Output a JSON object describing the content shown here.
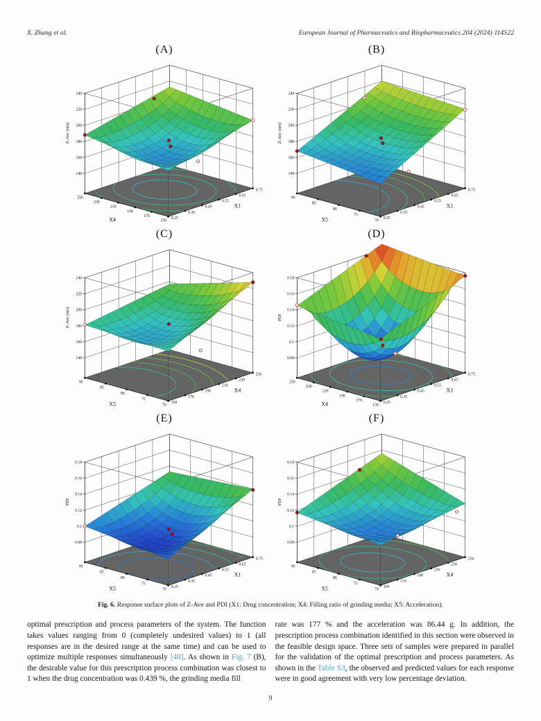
{
  "header": {
    "author": "X. Zhang et al.",
    "journal": "European Journal of Pharmaceutics and Biopharmaceutics 204 (2024) 114522"
  },
  "caption": {
    "prefix": "Fig. 6.",
    "text": " Response surface plots of Z-Ave and PDI (X1: Drug concentration; X4: Filling ratio of grinding media; X5: Acceleration)."
  },
  "body": {
    "left_col": {
      "segments": [
        {
          "text": "optimal prescription and process parameters of the system. The function takes values ranging from 0 (completely undesired values) to 1 (all responses are in the desired range at the same time) and can be used to optimize multiple responses simultaneously ",
          "link": false
        },
        {
          "text": "[48]",
          "link": true
        },
        {
          "text": ". As shown in ",
          "link": false
        },
        {
          "text": "Fig. 7",
          "link": true
        },
        {
          "text": " (B), the desirable value for this prescription process combination was closest to 1 when the drug concentration was 0.439 %, the grinding media fill",
          "link": false
        }
      ]
    },
    "right_col": {
      "segments": [
        {
          "text": "rate was 177 % and the acceleration was 86.44 g. In addition, the prescription process combination identified in this section were observed in the feasible design space. Three sets of samples were prepared in parallel for the validation of the optimal prescription and process parameters. As shown in the ",
          "link": false
        },
        {
          "text": "Table S3",
          "link": true
        },
        {
          "text": ", the observed and predicted values for each response were in good agreement with very low percentage deviation.",
          "link": false
        }
      ]
    }
  },
  "page_number": "9",
  "colors": {
    "link": "#4da3c9",
    "floor": "#646464",
    "point_filled": "#9e1518",
    "point_open": "#b05050",
    "colormap_low": "#223cc8",
    "colormap_mid": "#3ab95f",
    "colormap_high": "#dc5528"
  },
  "chart_data": [
    {
      "type": "surface3d",
      "label": "(A)",
      "zlabel": "Z-Ave (nm)",
      "z_ticks": [
        140,
        160,
        180,
        200,
        220,
        240
      ],
      "left_axis": {
        "name": "X4",
        "ticks": [
          250,
          230,
          210,
          190,
          170,
          150
        ]
      },
      "right_axis": {
        "name": "X1",
        "ticks": [
          0.25,
          0.35,
          0.45,
          0.55,
          0.65,
          0.75
        ]
      },
      "surface": {
        "corners": [
          188,
          172,
          200,
          213
        ],
        "center": 164
      },
      "contour_center": [
        0.45,
        0.5
      ],
      "contour_radii": [
        0.3,
        0.48,
        0.66,
        0.82,
        0.95
      ],
      "points": [
        {
          "u": 0,
          "v": 0,
          "z": 188,
          "open": false
        },
        {
          "u": 0.1,
          "v": 0.72,
          "z": 211,
          "open": false
        },
        {
          "u": 0.5,
          "v": 0.5,
          "z": 178,
          "open": false
        },
        {
          "u": 0.52,
          "v": 0.5,
          "z": 171,
          "open": false
        },
        {
          "u": 1,
          "v": 1,
          "z": 200,
          "open": true
        },
        {
          "u": 0.85,
          "v": 0.5,
          "z": 162,
          "open": true
        }
      ]
    },
    {
      "type": "surface3d",
      "label": "(B)",
      "zlabel": "Z-Ave (nm)",
      "z_ticks": [
        140,
        160,
        180,
        200,
        220,
        240
      ],
      "left_axis": {
        "name": "X5",
        "ticks": [
          90,
          85,
          80,
          75,
          70
        ]
      },
      "right_axis": {
        "name": "X1",
        "ticks": [
          0.25,
          0.35,
          0.45,
          0.55,
          0.65,
          0.75
        ]
      },
      "surface": {
        "corners": [
          168,
          156,
          214,
          220
        ],
        "center": 176
      },
      "contour_center": [
        0.3,
        0.1
      ],
      "contour_radii": [
        0.55,
        0.72,
        0.88,
        1.02
      ],
      "points": [
        {
          "u": 0,
          "v": 0,
          "z": 168,
          "open": false
        },
        {
          "u": 0.18,
          "v": 0.62,
          "z": 218,
          "open": true
        },
        {
          "u": 0.5,
          "v": 0.5,
          "z": 181,
          "open": false
        },
        {
          "u": 0.52,
          "v": 0.5,
          "z": 175,
          "open": false
        },
        {
          "u": 1,
          "v": 1,
          "z": 213,
          "open": true
        },
        {
          "u": 0.88,
          "v": 0.45,
          "z": 152,
          "open": true
        }
      ]
    },
    {
      "type": "surface3d",
      "label": "(C)",
      "zlabel": "Z-Ave (nm)",
      "z_ticks": [
        140,
        160,
        180,
        200,
        220,
        240
      ],
      "left_axis": {
        "name": "X5",
        "ticks": [
          90,
          85,
          80,
          75,
          70
        ]
      },
      "right_axis": {
        "name": "X4",
        "ticks": [
          150,
          170,
          190,
          210,
          230,
          250
        ]
      },
      "surface": {
        "corners": [
          181,
          177,
          228,
          197
        ],
        "center": 170
      },
      "contour_center": [
        0.35,
        0.1
      ],
      "contour_radii": [
        0.5,
        0.68,
        0.85,
        1.0
      ],
      "points": [
        {
          "u": 0,
          "v": 0,
          "z": 181,
          "open": true
        },
        {
          "u": 0.5,
          "v": 0.5,
          "z": 179,
          "open": false
        },
        {
          "u": 0.88,
          "v": 0.5,
          "z": 157,
          "open": true
        },
        {
          "u": 1,
          "v": 1,
          "z": 228,
          "open": false
        }
      ]
    },
    {
      "type": "surface3d",
      "label": "(D)",
      "zlabel": "PDI",
      "z_ticks": [
        0.08,
        0.1,
        0.12,
        0.14,
        0.16,
        0.18
      ],
      "left_axis": {
        "name": "X4",
        "ticks": [
          250,
          230,
          210,
          190,
          170,
          150
        ]
      },
      "right_axis": {
        "name": "X1",
        "ticks": [
          0.25,
          0.35,
          0.45,
          0.55,
          0.65,
          0.75
        ]
      },
      "surface": {
        "corners": [
          0.145,
          0.133,
          0.176,
          0.187
        ],
        "center": 0.081
      },
      "contour_center": [
        0.5,
        0.5
      ],
      "contour_radii": [
        0.28,
        0.48,
        0.66,
        0.82,
        0.96
      ],
      "points": [
        {
          "u": 0.12,
          "v": 0.7,
          "z": 0.186,
          "open": false
        },
        {
          "u": 1,
          "v": 1,
          "z": 0.176,
          "open": false
        },
        {
          "u": 0,
          "v": 0,
          "z": 0.146,
          "open": true
        },
        {
          "u": 0.5,
          "v": 0.5,
          "z": 0.1,
          "open": false
        },
        {
          "u": 0.52,
          "v": 0.5,
          "z": 0.093,
          "open": false
        },
        {
          "u": 0.62,
          "v": 0.55,
          "z": 0.084,
          "open": true
        }
      ]
    },
    {
      "type": "surface3d",
      "label": "(E)",
      "zlabel": "PDI",
      "z_ticks": [
        0.08,
        0.1,
        0.12,
        0.14,
        0.16,
        0.18
      ],
      "left_axis": {
        "name": "X5",
        "ticks": [
          90,
          85,
          80,
          75,
          70
        ]
      },
      "right_axis": {
        "name": "X1",
        "ticks": [
          0.25,
          0.35,
          0.45,
          0.55,
          0.65,
          0.75
        ]
      },
      "surface": {
        "corners": [
          0.1,
          0.088,
          0.14,
          0.133
        ],
        "center": 0.086
      },
      "contour_center": [
        0.6,
        0.25
      ],
      "contour_radii": [
        0.35,
        0.55,
        0.75,
        0.92
      ],
      "points": [
        {
          "u": 0,
          "v": 0,
          "z": 0.1,
          "open": true
        },
        {
          "u": 0.5,
          "v": 0.5,
          "z": 0.093,
          "open": false
        },
        {
          "u": 0.52,
          "v": 0.52,
          "z": 0.087,
          "open": false
        },
        {
          "u": 1,
          "v": 1,
          "z": 0.139,
          "open": false
        }
      ]
    },
    {
      "type": "surface3d",
      "label": "(F)",
      "zlabel": "PDI",
      "z_ticks": [
        0.08,
        0.1,
        0.12,
        0.14,
        0.16,
        0.18
      ],
      "left_axis": {
        "name": "X5",
        "ticks": [
          90,
          85,
          80,
          75,
          70
        ]
      },
      "right_axis": {
        "name": "X4",
        "ticks": [
          150,
          170,
          190,
          210,
          230,
          250
        ]
      },
      "surface": {
        "corners": [
          0.117,
          0.105,
          0.122,
          0.156
        ],
        "center": 0.1
      },
      "contour_center": [
        0.5,
        0.4
      ],
      "contour_radii": [
        0.3,
        0.5,
        0.72,
        0.92
      ],
      "points": [
        {
          "u": 0,
          "v": 0,
          "z": 0.117,
          "open": false
        },
        {
          "u": 0.12,
          "v": 0.62,
          "z": 0.152,
          "open": false
        },
        {
          "u": 0.75,
          "v": 0.45,
          "z": 0.094,
          "open": true
        },
        {
          "u": 0.95,
          "v": 0.95,
          "z": 0.112,
          "open": true
        }
      ]
    }
  ]
}
